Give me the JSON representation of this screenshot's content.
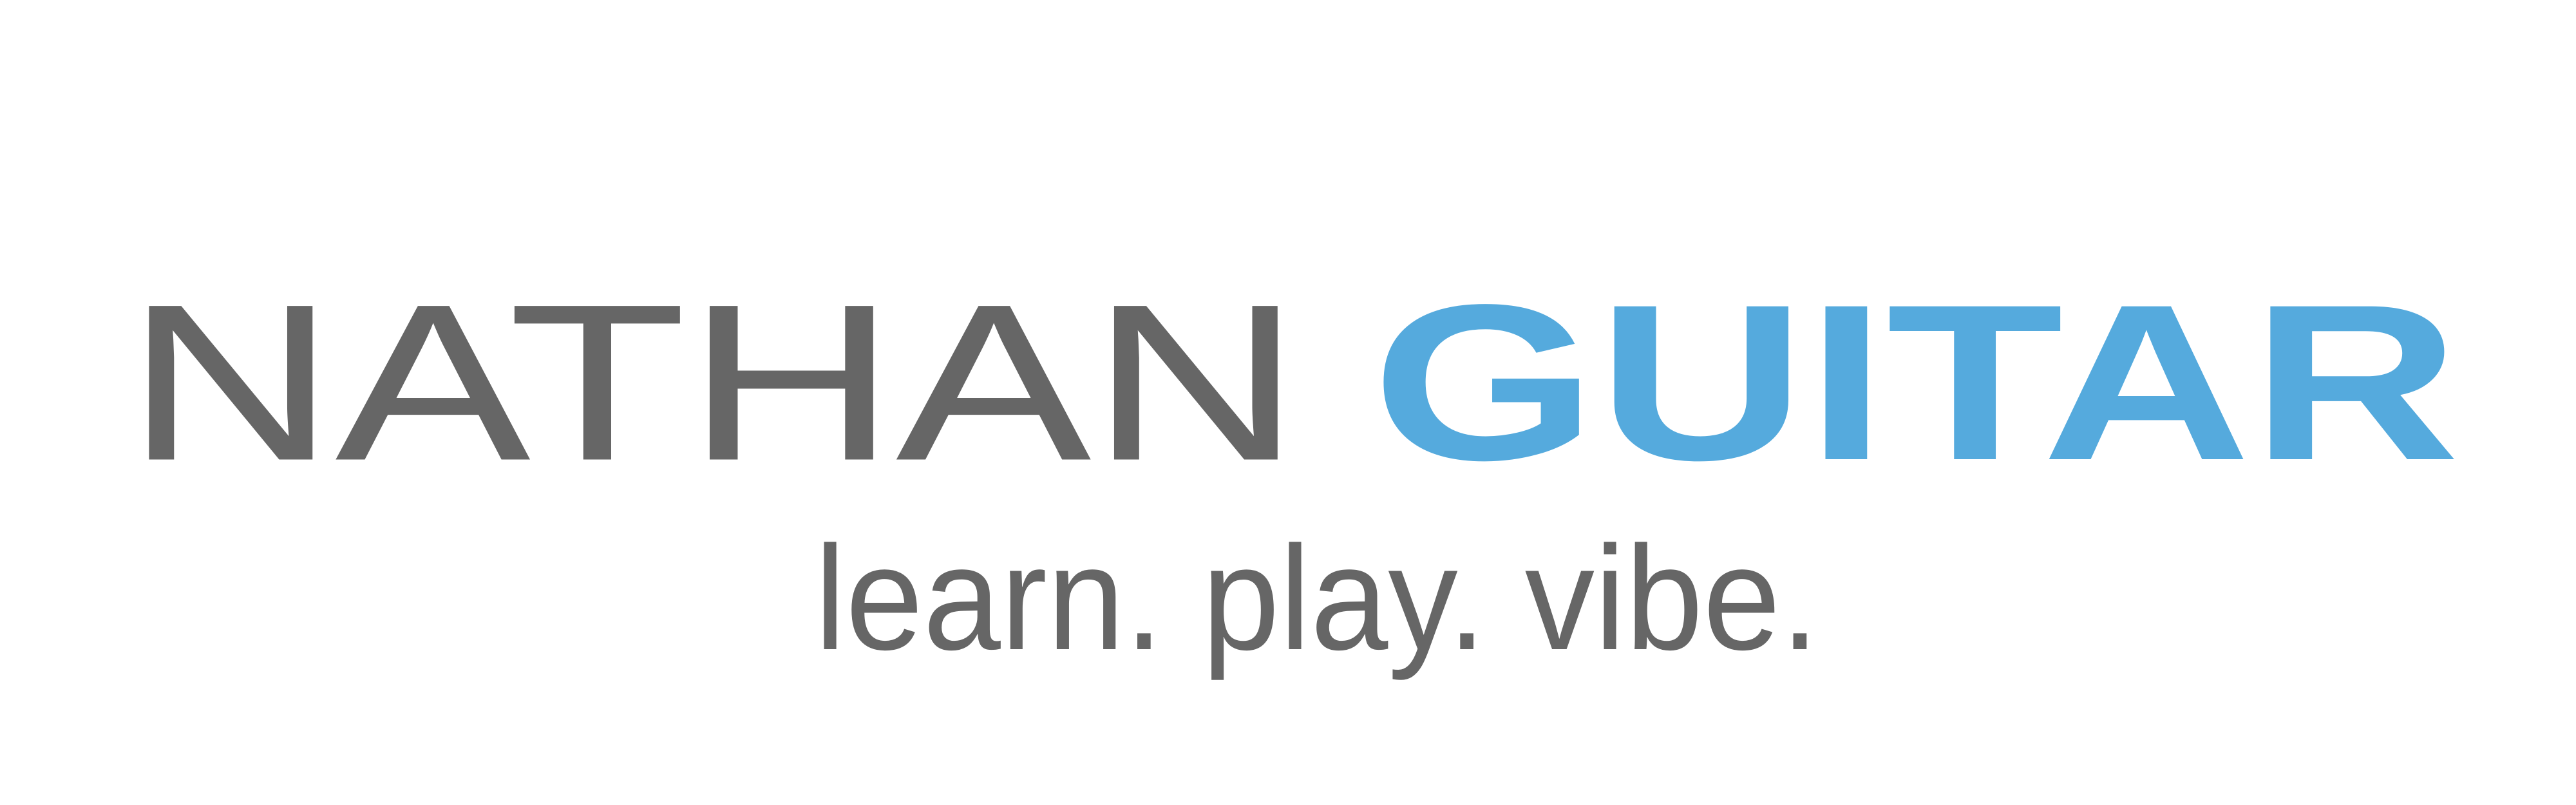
{
  "logo": {
    "first_word": "NATHAN",
    "second_word": "GUITAR",
    "tagline": "learn. play. vibe.",
    "colors": {
      "gray": "#666666",
      "blue": "#55aadd",
      "background": "#ffffff"
    }
  }
}
